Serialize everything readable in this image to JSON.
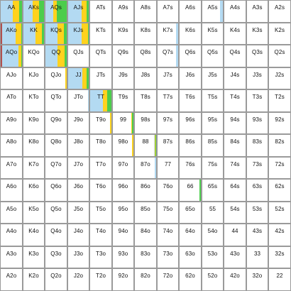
{
  "colors": {
    "raise": "#b3daf2",
    "call": "#ffd21e",
    "allin": "#4ccd4c",
    "fold_marker": "#b0504f",
    "empty": "#ffffff",
    "border": "#9a9a9a"
  },
  "rows": [
    [
      "AA",
      "AKs",
      "AQs",
      "AJs",
      "ATs",
      "A9s",
      "A8s",
      "A7s",
      "A6s",
      "A5s",
      "A4s",
      "A3s",
      "A2s"
    ],
    [
      "AKo",
      "KK",
      "KQs",
      "KJs",
      "KTs",
      "K9s",
      "K8s",
      "K7s",
      "K6s",
      "K5s",
      "K4s",
      "K3s",
      "K2s"
    ],
    [
      "AQo",
      "KQo",
      "QQ",
      "QJs",
      "QTs",
      "Q9s",
      "Q8s",
      "Q7s",
      "Q6s",
      "Q5s",
      "Q4s",
      "Q3s",
      "Q2s"
    ],
    [
      "AJo",
      "KJo",
      "QJo",
      "JJ",
      "JTs",
      "J9s",
      "J8s",
      "J7s",
      "J6s",
      "J5s",
      "J4s",
      "J3s",
      "J2s"
    ],
    [
      "ATo",
      "KTo",
      "QTo",
      "JTo",
      "TT",
      "T9s",
      "T8s",
      "T7s",
      "T6s",
      "T5s",
      "T4s",
      "T3s",
      "T2s"
    ],
    [
      "A9o",
      "K9o",
      "Q9o",
      "J9o",
      "T9o",
      "99",
      "98s",
      "97s",
      "96s",
      "95s",
      "94s",
      "93s",
      "92s"
    ],
    [
      "A8o",
      "K8o",
      "Q8o",
      "J8o",
      "T8o",
      "98o",
      "88",
      "87s",
      "86s",
      "85s",
      "84s",
      "83s",
      "82s"
    ],
    [
      "A7o",
      "K7o",
      "Q7o",
      "J7o",
      "T7o",
      "97o",
      "87o",
      "77",
      "76s",
      "75s",
      "74s",
      "73s",
      "72s"
    ],
    [
      "A6o",
      "K6o",
      "Q6o",
      "J6o",
      "T6o",
      "96o",
      "86o",
      "76o",
      "66",
      "65s",
      "64s",
      "63s",
      "62s"
    ],
    [
      "A5o",
      "K5o",
      "Q5o",
      "J5o",
      "T5o",
      "95o",
      "85o",
      "75o",
      "65o",
      "55",
      "54s",
      "53s",
      "52s"
    ],
    [
      "A4o",
      "K4o",
      "Q4o",
      "J4o",
      "T4o",
      "94o",
      "84o",
      "74o",
      "64o",
      "54o",
      "44",
      "43s",
      "42s"
    ],
    [
      "A3o",
      "K3o",
      "Q3o",
      "J3o",
      "T3o",
      "93o",
      "83o",
      "73o",
      "63o",
      "53o",
      "43o",
      "33",
      "32s"
    ],
    [
      "A2o",
      "K2o",
      "Q2o",
      "J2o",
      "T2o",
      "92o",
      "82o",
      "72o",
      "62o",
      "52o",
      "42o",
      "32o",
      "22"
    ]
  ],
  "strategy": {
    "AA": {
      "fold": 0,
      "raise": 0.55,
      "call": 0.3,
      "allin": 0.15
    },
    "AKs": {
      "fold": 0,
      "raise": 0.45,
      "call": 0.3,
      "allin": 0.25
    },
    "AQs": {
      "fold": 0,
      "raise": 0.38,
      "call": 0.15,
      "allin": 0.47
    },
    "AJs": {
      "fold": 0,
      "raise": 0.65,
      "call": 0.25,
      "allin": 0.1
    },
    "AKo": {
      "fold": 0.05,
      "raise": 0.65,
      "call": 0.25,
      "allin": 0.05
    },
    "KK": {
      "fold": 0,
      "raise": 0.6,
      "call": 0.3,
      "allin": 0.1
    },
    "KQs": {
      "fold": 0,
      "raise": 0.55,
      "call": 0.3,
      "allin": 0.15
    },
    "KJs": {
      "fold": 0,
      "raise": 0.65,
      "call": 0.3,
      "allin": 0.05
    },
    "QQ": {
      "fold": 0,
      "raise": 0.55,
      "call": 0.35,
      "allin": 0.1
    },
    "AQo": {
      "fold": 0.07,
      "raise": 0.75,
      "call": 0.15,
      "allin": 0.03
    },
    "QJo": {
      "fold": 0.93,
      "raise": 0,
      "call": 0.07,
      "allin": 0
    },
    "JJ": {
      "fold": 0,
      "raise": 0.7,
      "call": 0.2,
      "allin": 0.1
    },
    "JTo": {
      "fold": 0.95,
      "raise": 0.05,
      "call": 0,
      "allin": 0
    },
    "TT": {
      "fold": 0,
      "raise": 0.6,
      "call": 0.2,
      "allin": 0.2
    },
    "T9o": {
      "fold": 0.93,
      "raise": 0,
      "call": 0.07,
      "allin": 0
    },
    "99": {
      "fold": 0.88,
      "raise": 0,
      "call": 0.04,
      "allin": 0.08
    },
    "98o": {
      "fold": 0.93,
      "raise": 0,
      "call": 0.07,
      "allin": 0
    },
    "88": {
      "fold": 0.9,
      "raise": 0.03,
      "call": 0.04,
      "allin": 0.03
    },
    "87o": {
      "fold": 0.93,
      "raise": 0.07,
      "call": 0,
      "allin": 0
    },
    "A5s": {
      "fold": 0.85,
      "raise": 0.15,
      "call": 0,
      "allin": 0
    },
    "K7s": {
      "fold": 0.9,
      "raise": 0.1,
      "call": 0,
      "allin": 0
    },
    "Q7s": {
      "fold": 0.9,
      "raise": 0.1,
      "call": 0,
      "allin": 0
    },
    "66": {
      "fold": 0.92,
      "raise": 0,
      "call": 0,
      "allin": 0.08
    }
  }
}
